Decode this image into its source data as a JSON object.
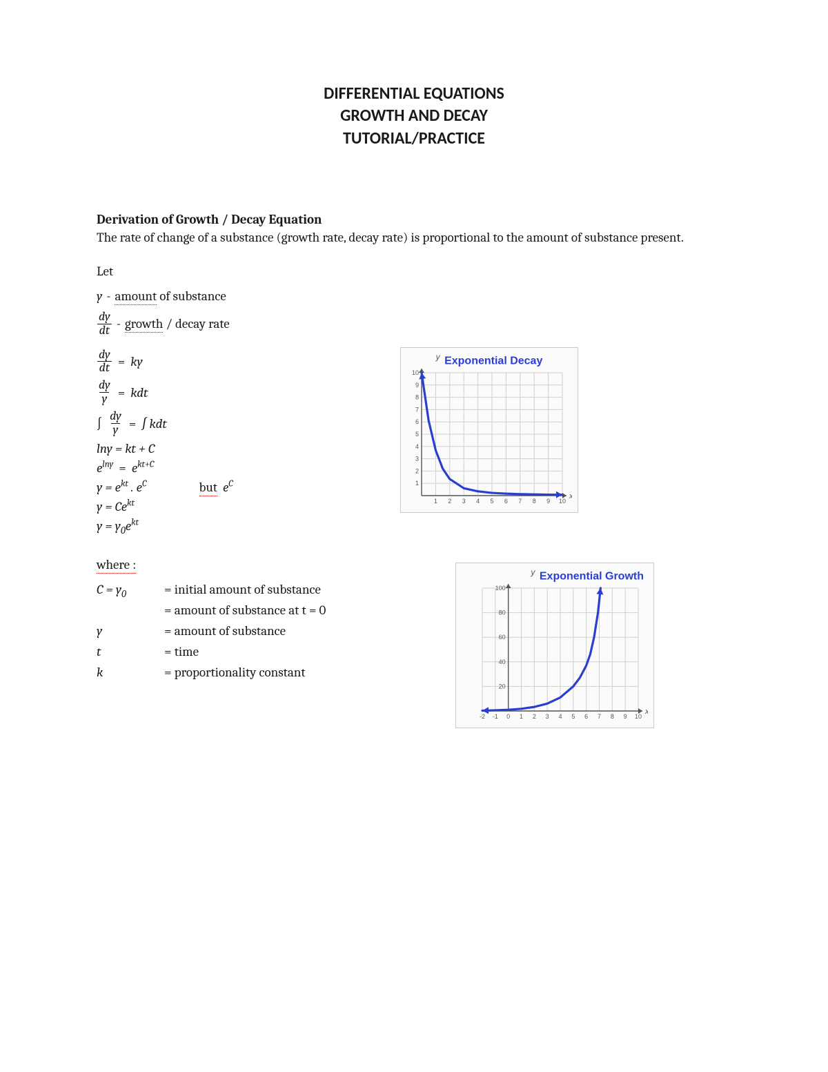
{
  "title": {
    "line1": "DIFFERENTIAL EQUATIONS",
    "line2": "GROWTH AND DECAY",
    "line3": "TUTORIAL/PRACTICE"
  },
  "section_heading": "Derivation of Growth / Decay Equation",
  "intro": "The rate of change of a substance (growth rate, decay rate) is proportional to the amount of substance present.",
  "let_label": "Let",
  "def_y": {
    "sym": "y",
    "sep": "-",
    "u": "amount",
    "rest": " of substance"
  },
  "def_dydt": {
    "num": "dy",
    "den": "dt",
    "sep": "-",
    "u": "growth",
    "rest": " / decay rate"
  },
  "equations": {
    "eq1": {
      "num": "dy",
      "den": "dt",
      "rhs_k": "k",
      "rhs_y": "y"
    },
    "eq2": {
      "num": "dy",
      "den": "y",
      "rhs_k": "k",
      "rhs_dt": "dt"
    },
    "eq3": {
      "int": "∫",
      "num": "dy",
      "den": "y",
      "rhs": "∫ kdt"
    },
    "eq4": "lny = kt + C",
    "eq5_lhs_base": "e",
    "eq5_lhs_exp": "lny",
    "eq5_rhs_base": "e",
    "eq5_rhs_exp": "kt+C",
    "eq6_lhs": "y = e",
    "eq6_lhs_exp": "kt",
    "eq6_mid": " . e",
    "eq6_mid_exp": "C",
    "eq6_but_u": "but",
    "eq6_but_rest": " e",
    "eq6_but_exp": "C",
    "eq7": "y = Ce",
    "eq7_exp": "kt",
    "eq8_a": "y = y",
    "eq8_sub": "0",
    "eq8_b": "e",
    "eq8_exp": "kt"
  },
  "where_label": "where :",
  "where_rows": {
    "r1_sym_a": "C = y",
    "r1_sym_sub": "0",
    "r1_def": "= initial amount of substance",
    "r1b_def": "= amount of substance at t = 0",
    "r2_sym": "y",
    "r2_def": "= amount of substance",
    "r3_sym": "t",
    "r3_def": "= time",
    "r4_sym": "k",
    "r4_def": "= proportionality constant"
  },
  "decay_chart": {
    "title": "Exponential Decay",
    "type": "line",
    "curve_color": "#2a3fd0",
    "curve_width": 3.2,
    "axis_color": "#555555",
    "grid_color": "#cfcfcf",
    "background": "#fbfbfb",
    "tick_fontsize": 9,
    "tick_color": "#555555",
    "xlim": [
      0,
      10
    ],
    "ylim": [
      0,
      10
    ],
    "xticks": [
      1,
      2,
      3,
      4,
      5,
      6,
      7,
      8,
      9,
      10
    ],
    "yticks": [
      1,
      2,
      3,
      4,
      5,
      6,
      7,
      8,
      9,
      10
    ],
    "y_axis_label": "y",
    "x_axis_label": "x",
    "points": [
      [
        0,
        10
      ],
      [
        0.5,
        6.1
      ],
      [
        1,
        3.7
      ],
      [
        1.5,
        2.2
      ],
      [
        2,
        1.35
      ],
      [
        3,
        0.6
      ],
      [
        4,
        0.35
      ],
      [
        5,
        0.22
      ],
      [
        6,
        0.16
      ],
      [
        7,
        0.12
      ],
      [
        8,
        0.1
      ],
      [
        9,
        0.08
      ],
      [
        10,
        0.07
      ]
    ]
  },
  "growth_chart": {
    "title": "Exponential Growth",
    "type": "line",
    "curve_color": "#2a3fd0",
    "curve_width": 3.2,
    "axis_color": "#555555",
    "grid_color": "#cfcfcf",
    "background": "#fbfbfb",
    "tick_fontsize": 9,
    "tick_color": "#555555",
    "xlim": [
      -2,
      10
    ],
    "ylim": [
      0,
      100
    ],
    "xticks": [
      -2,
      -1,
      0,
      1,
      2,
      3,
      4,
      5,
      6,
      7,
      8,
      9,
      10
    ],
    "yticks": [
      20,
      40,
      60,
      80,
      100
    ],
    "y_axis_label": "y",
    "x_axis_label": "x",
    "points": [
      [
        -2,
        0.3
      ],
      [
        -1,
        0.6
      ],
      [
        0,
        1
      ],
      [
        1,
        1.8
      ],
      [
        2,
        3.3
      ],
      [
        3,
        6
      ],
      [
        4,
        11
      ],
      [
        5,
        20
      ],
      [
        5.5,
        27
      ],
      [
        6,
        37
      ],
      [
        6.3,
        46
      ],
      [
        6.6,
        60
      ],
      [
        6.9,
        80
      ],
      [
        7.1,
        100
      ]
    ]
  }
}
